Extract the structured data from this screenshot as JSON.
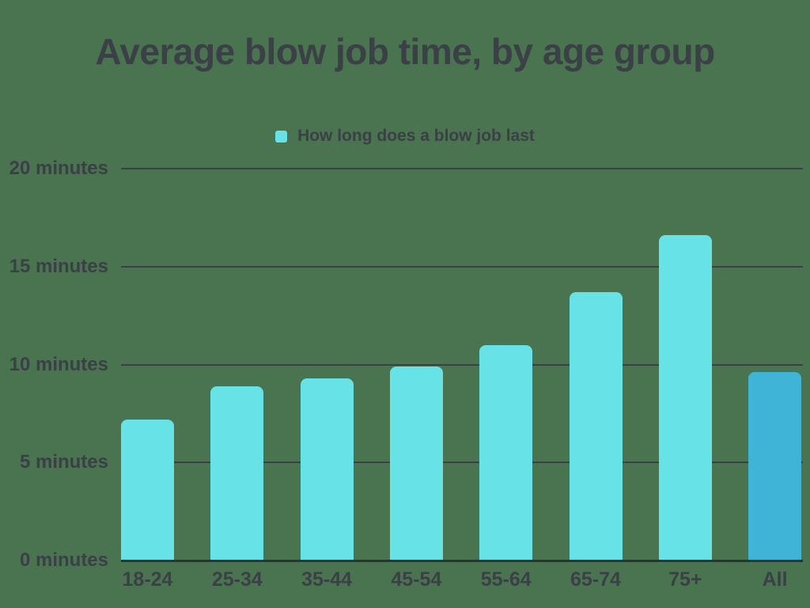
{
  "title": "Average blow job time, by age group",
  "legend": {
    "label": "How long does a blow job last"
  },
  "colors": {
    "background": "#4a7350",
    "bar": "#67e3e8",
    "bar_highlight": "#40b4d6",
    "text": "#3a4046",
    "gridline": "#3b4046",
    "baseline": "#2d3237"
  },
  "chart_data": {
    "type": "bar",
    "title": "Average blow job time, by age group",
    "categories": [
      "18-24",
      "25-34",
      "35-44",
      "45-54",
      "55-64",
      "65-74",
      "75+",
      "All"
    ],
    "series": [
      {
        "name": "How long does a blow job last",
        "values": [
          7.2,
          8.9,
          9.3,
          9.9,
          11.0,
          13.7,
          16.6,
          9.6
        ]
      }
    ],
    "highlight_category": "All",
    "xlabel": "",
    "ylabel": "minutes",
    "ylim": [
      0,
      20
    ],
    "yticks": [
      {
        "value": 0,
        "label": "0 minutes"
      },
      {
        "value": 5,
        "label": "5 minutes"
      },
      {
        "value": 10,
        "label": "10 minutes"
      },
      {
        "value": 15,
        "label": "15 minutes"
      },
      {
        "value": 20,
        "label": "20 minutes"
      }
    ],
    "grid": true,
    "legend_position": "top"
  }
}
